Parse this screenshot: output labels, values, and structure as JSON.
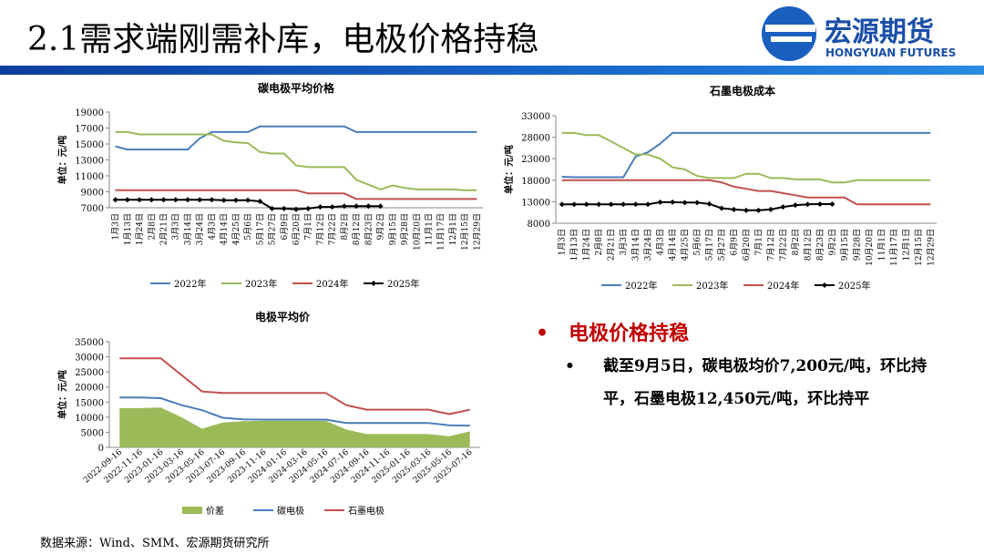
{
  "header": {
    "title": "2.1需求端刚需补库，电极价格持稳",
    "logo_cn": "宏源期货",
    "logo_en": "HONGYUAN FUTURES"
  },
  "chart_data": [
    {
      "type": "line",
      "title": "碳电极平均价格",
      "ylabel": "单位：元/吨",
      "categories": [
        "1月3日",
        "1月13日",
        "1月24日",
        "2月8日",
        "2月21日",
        "3月3日",
        "3月14日",
        "3月24日",
        "4月3日",
        "4月14日",
        "4月25日",
        "5月6日",
        "5月17日",
        "5月27日",
        "6月9日",
        "6月20日",
        "7月1日",
        "7月12日",
        "7月22日",
        "8月2日",
        "8月12日",
        "8月23日",
        "9月2日",
        "9月15日",
        "9月28日",
        "10月20日",
        "11月1日",
        "11月17日",
        "12月1日",
        "12月15日",
        "12月29日"
      ],
      "series": [
        {
          "name": "2022年",
          "color": "#4a7ebb",
          "values": [
            14700,
            14300,
            14300,
            14300,
            14300,
            14300,
            14300,
            15700,
            16500,
            16500,
            16500,
            16500,
            17200,
            17200,
            17200,
            17200,
            17200,
            17200,
            17200,
            17200,
            16500,
            16500,
            16500,
            16500,
            16500,
            16500,
            16500,
            16500,
            16500,
            16500,
            16500
          ]
        },
        {
          "name": "2023年",
          "color": "#9bbb59",
          "values": [
            16500,
            16500,
            16200,
            16200,
            16200,
            16200,
            16200,
            16200,
            16200,
            15400,
            15200,
            15100,
            14000,
            13800,
            13800,
            12300,
            12100,
            12100,
            12100,
            12100,
            10500,
            9900,
            9300,
            9800,
            9500,
            9300,
            9300,
            9300,
            9300,
            9200,
            9200
          ]
        },
        {
          "name": "2024年",
          "color": "#c0504d",
          "values": [
            9200,
            9200,
            9200,
            9200,
            9200,
            9200,
            9200,
            9200,
            9200,
            9200,
            9200,
            9200,
            9200,
            9200,
            9200,
            9200,
            8800,
            8800,
            8800,
            8800,
            8100,
            8100,
            8100,
            8100,
            8100,
            8100,
            8100,
            8100,
            8100,
            8100,
            8100
          ]
        },
        {
          "name": "2025年",
          "color": "#000000",
          "marker": "diamond",
          "values": [
            8000,
            8000,
            8000,
            8000,
            8000,
            8000,
            8000,
            8000,
            8000,
            7950,
            7950,
            7950,
            7800,
            6900,
            6900,
            6800,
            6900,
            7100,
            7100,
            7200,
            7200,
            7200,
            7200,
            null,
            null,
            null,
            null,
            null,
            null,
            null,
            null
          ]
        }
      ],
      "ylim": [
        7000,
        19000
      ],
      "yticks": [
        7000,
        9000,
        11000,
        13000,
        15000,
        17000,
        19000
      ],
      "legend": "bottom"
    },
    {
      "type": "line",
      "title": "石墨电极成本",
      "ylabel": "单位：元/吨",
      "categories": [
        "1月3日",
        "1月13日",
        "1月24日",
        "2月8日",
        "2月21日",
        "3月3日",
        "3月14日",
        "3月24日",
        "4月3日",
        "4月14日",
        "4月25日",
        "5月6日",
        "5月17日",
        "5月27日",
        "6月9日",
        "6月20日",
        "7月1日",
        "7月12日",
        "7月22日",
        "8月2日",
        "8月12日",
        "8月23日",
        "9月2日",
        "9月15日",
        "9月28日",
        "10月20日",
        "11月1日",
        "11月17日",
        "12月1日",
        "12月15日",
        "12月29日"
      ],
      "series": [
        {
          "name": "2022年",
          "color": "#4a7ebb",
          "values": [
            18800,
            18700,
            18700,
            18700,
            18700,
            18700,
            23500,
            24500,
            26500,
            29000,
            29000,
            29000,
            29000,
            29000,
            29000,
            29000,
            29000,
            29000,
            29000,
            29000,
            29000,
            29000,
            29000,
            29000,
            29000,
            29000,
            29000,
            29000,
            29000,
            29000,
            29000
          ]
        },
        {
          "name": "2023年",
          "color": "#9bbb59",
          "values": [
            29000,
            29000,
            28500,
            28500,
            27000,
            25500,
            24000,
            24000,
            23000,
            21000,
            20500,
            19000,
            18500,
            18500,
            18500,
            19500,
            19500,
            18500,
            18500,
            18200,
            18200,
            18200,
            17500,
            17500,
            18000,
            18000,
            18000,
            18000,
            18000,
            18000,
            18000
          ]
        },
        {
          "name": "2024年",
          "color": "#c0504d",
          "values": [
            18000,
            18000,
            18000,
            18000,
            18000,
            18000,
            18000,
            18000,
            18000,
            18000,
            18000,
            18000,
            18000,
            17500,
            16500,
            16000,
            15500,
            15500,
            15000,
            14500,
            14000,
            14000,
            14000,
            14000,
            12400,
            12400,
            12400,
            12400,
            12400,
            12400,
            12400
          ]
        },
        {
          "name": "2025年",
          "color": "#000000",
          "marker": "diamond",
          "values": [
            12400,
            12400,
            12400,
            12400,
            12400,
            12400,
            12400,
            12400,
            12900,
            12900,
            12800,
            12800,
            12500,
            11500,
            11200,
            11000,
            11000,
            11200,
            11800,
            12200,
            12400,
            12450,
            12450,
            null,
            null,
            null,
            null,
            null,
            null,
            null,
            null
          ]
        }
      ],
      "ylim": [
        8000,
        33000
      ],
      "yticks": [
        8000,
        13000,
        18000,
        23000,
        28000,
        33000
      ],
      "legend": "bottom"
    },
    {
      "type": "line",
      "title": "电极平均价",
      "ylabel": "单位：元/吨",
      "categories": [
        "2022-09-16",
        "2022-11-16",
        "2023-01-16",
        "2023-03-16",
        "2023-05-16",
        "2023-07-16",
        "2023-09-16",
        "2023-11-16",
        "2024-01-16",
        "2024-03-16",
        "2024-05-16",
        "2024-07-16",
        "2024-09-16",
        "2024-11-16",
        "2025-01-16",
        "2025-03-16",
        "2025-05-16",
        "2025-07-16"
      ],
      "series": [
        {
          "name": "价差",
          "color": "#9bbb59",
          "type": "area",
          "values": [
            13000,
            13000,
            13200,
            10000,
            6200,
            8200,
            8700,
            8800,
            8800,
            8800,
            8800,
            5900,
            4400,
            4400,
            4400,
            4400,
            3700,
            5300
          ]
        },
        {
          "name": "碳电极",
          "color": "#4a7ebb",
          "values": [
            16500,
            16500,
            16300,
            14000,
            12300,
            9800,
            9300,
            9200,
            9200,
            9200,
            9200,
            8100,
            8100,
            8100,
            8100,
            8100,
            7300,
            7200
          ]
        },
        {
          "name": "石墨电极",
          "color": "#c0504d",
          "values": [
            29500,
            29500,
            29500,
            24000,
            18500,
            18000,
            18000,
            18000,
            18000,
            18000,
            18000,
            14000,
            12500,
            12500,
            12500,
            12500,
            11000,
            12500
          ]
        }
      ],
      "ylim": [
        0,
        35000
      ],
      "yticks": [
        0,
        5000,
        10000,
        15000,
        20000,
        25000,
        30000,
        35000
      ],
      "legend": "bottom"
    }
  ],
  "bullets": {
    "heading": "电极价格持稳",
    "items": [
      "截至9月5日，碳电极均价7,200元/吨，环比持平，石墨电极12,450元/吨，环比持平"
    ]
  },
  "source": "数据来源：Wind、SMM、宏源期货研究所"
}
